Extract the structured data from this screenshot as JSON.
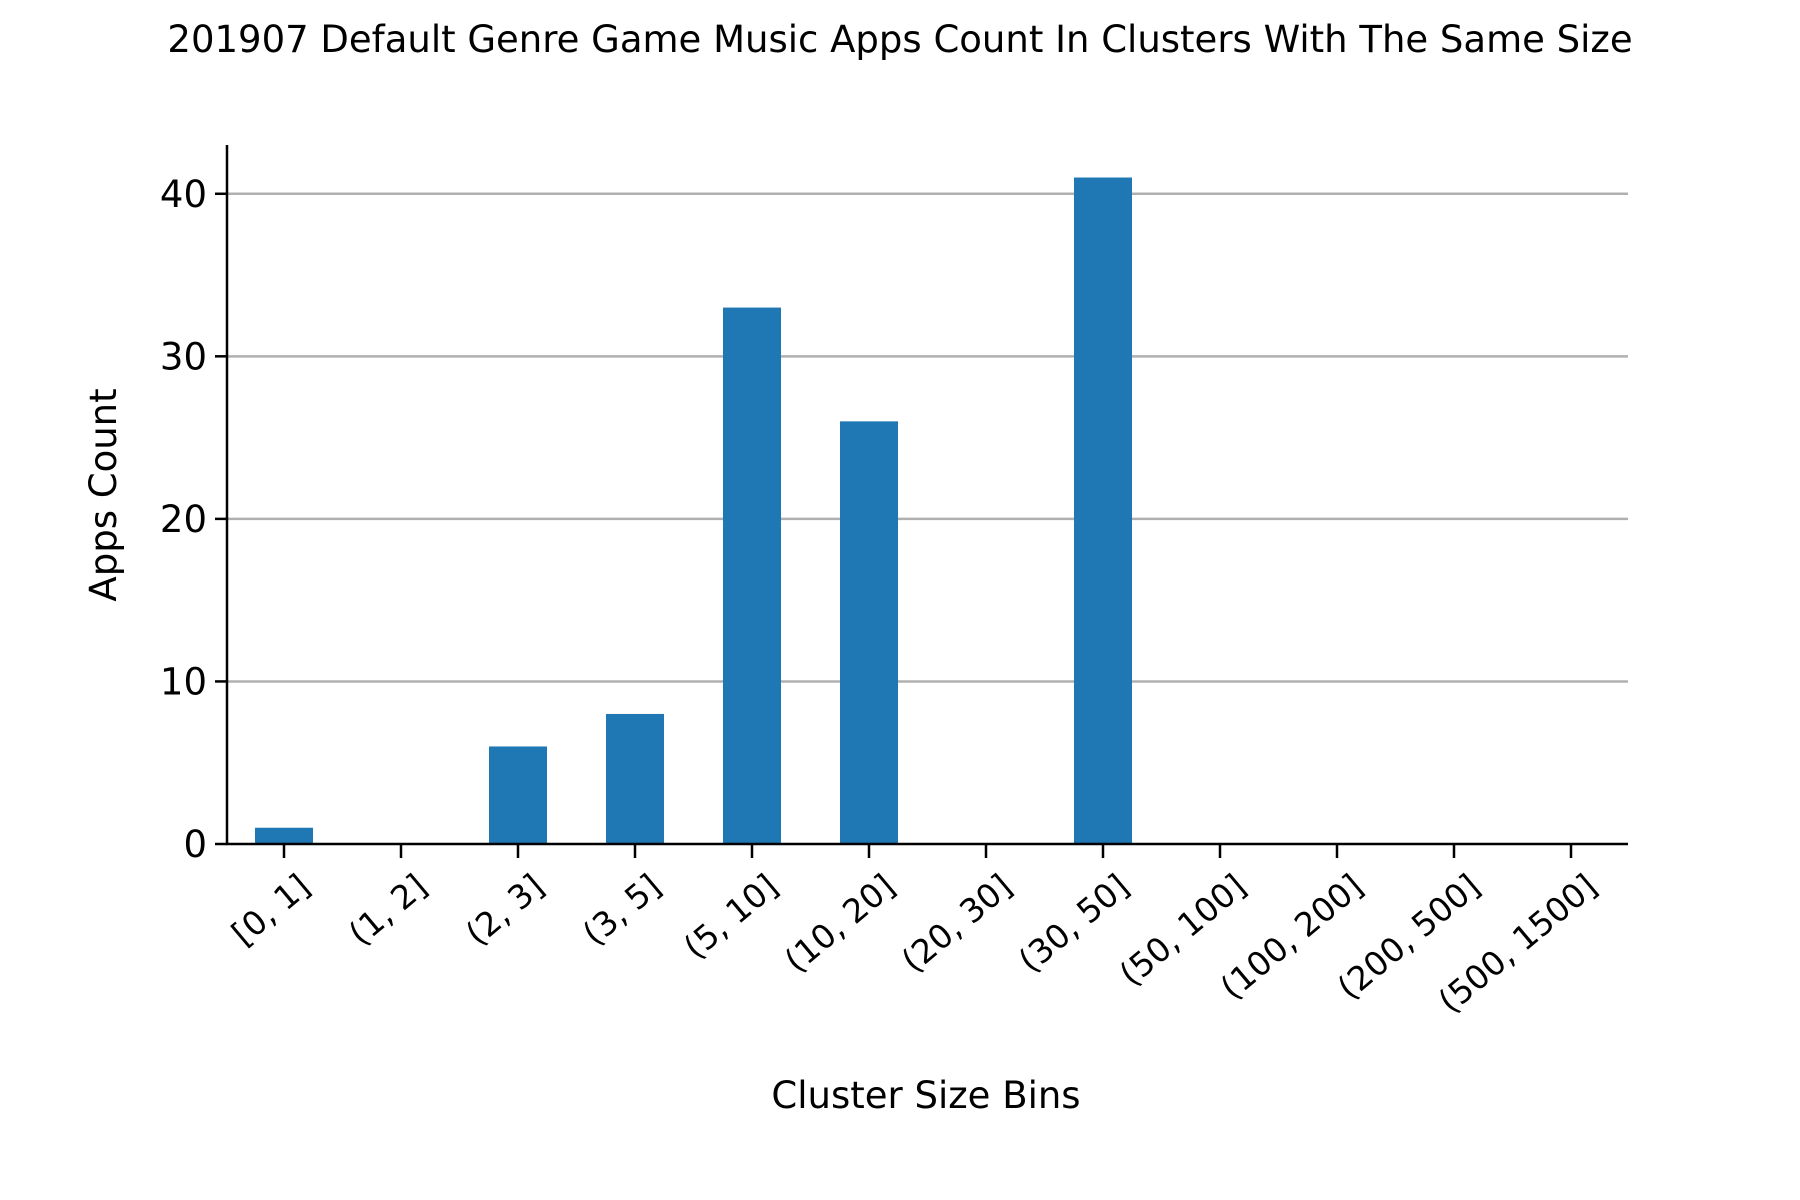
{
  "chart_data": {
    "type": "bar",
    "title": "201907 Default Genre Game Music Apps Count In Clusters With The Same Size",
    "xlabel": "Cluster Size Bins",
    "ylabel": "Apps Count",
    "categories": [
      "[0, 1]",
      "(1, 2]",
      "(2, 3]",
      "(3, 5]",
      "(5, 10]",
      "(10, 20]",
      "(20, 30]",
      "(30, 50]",
      "(50, 100]",
      "(100, 200]",
      "(200, 500]",
      "(500, 1500]"
    ],
    "values": [
      1,
      0,
      6,
      8,
      33,
      26,
      0,
      41,
      0,
      0,
      0,
      0
    ],
    "ylim": [
      0,
      43
    ],
    "yticks": [
      0,
      10,
      20,
      30,
      40
    ],
    "grid": "horizontal",
    "bar_color": "#1f77b4",
    "grid_color": "#b0b0b0"
  }
}
